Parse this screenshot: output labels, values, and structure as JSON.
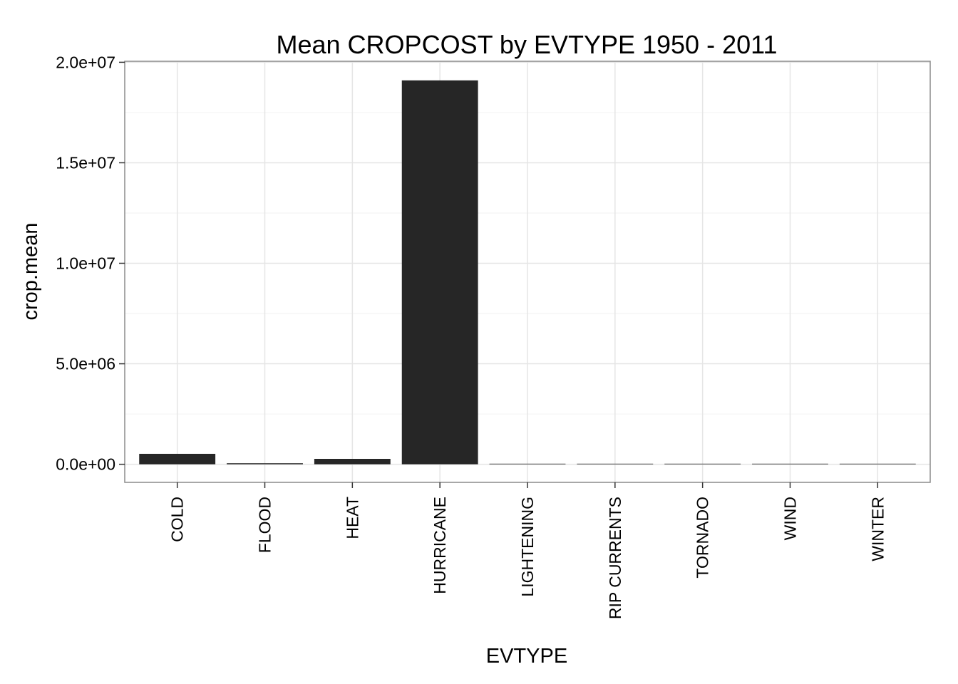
{
  "chart_data": {
    "type": "bar",
    "title": "Mean CROPCOST by EVTYPE 1950 - 2011",
    "xlabel": "EVTYPE",
    "ylabel": "crop.mean",
    "categories": [
      "COLD",
      "FLOOD",
      "HEAT",
      "HURRICANE",
      "LIGHTENING",
      "RIP CURRENTS",
      "TORNADO",
      "WIND",
      "WINTER"
    ],
    "values": [
      520000,
      50000,
      270000,
      19100000,
      0,
      0,
      0,
      0,
      0
    ],
    "ylim": [
      -900000,
      20050000
    ],
    "yticks": [
      0,
      5000000,
      10000000,
      15000000,
      20000000
    ],
    "ytick_labels": [
      "0.0e+00",
      "5.0e+06",
      "1.0e+07",
      "1.5e+07",
      "2.0e+07"
    ],
    "grid": true,
    "bar_color": "#262626",
    "grid_major_color": "#e5e5e5",
    "grid_minor_color": "#f4f4f4",
    "panel_border_color": "#8c8c8c"
  }
}
